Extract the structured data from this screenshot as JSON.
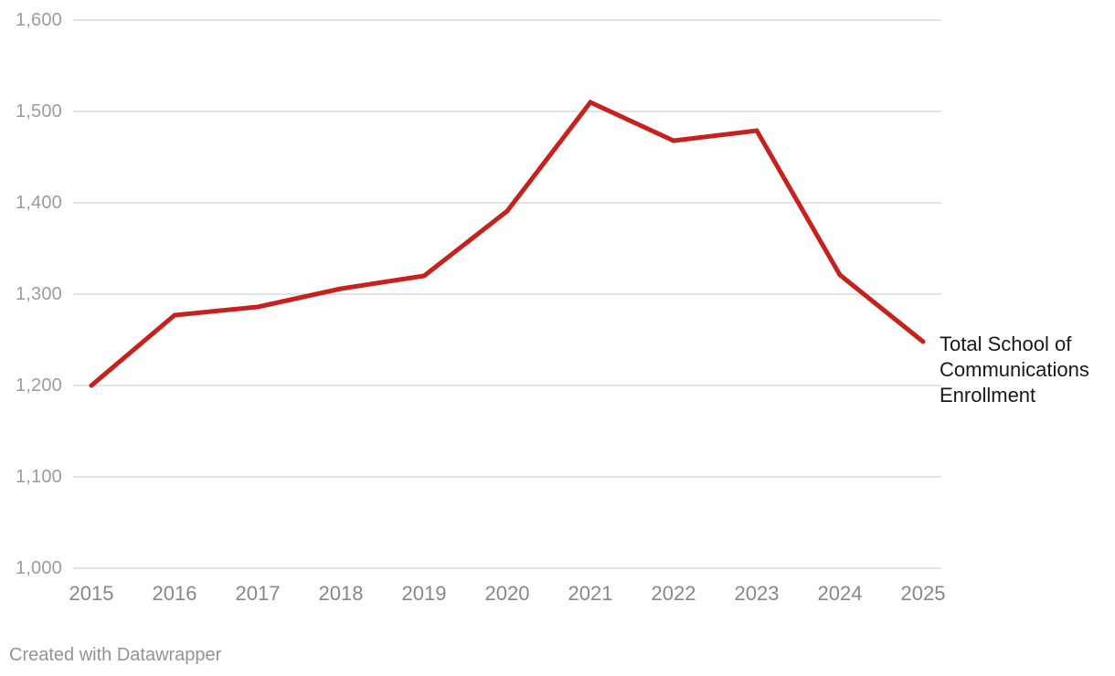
{
  "chart_data": {
    "type": "line",
    "x": [
      2015,
      2016,
      2017,
      2018,
      2019,
      2020,
      2021,
      2022,
      2023,
      2024,
      2025
    ],
    "series": [
      {
        "name": "Total School of Communications Enrollment",
        "values": [
          1200,
          1277,
          1286,
          1306,
          1320,
          1391,
          1510,
          1468,
          1479,
          1321,
          1248
        ]
      }
    ],
    "title": "",
    "xlabel": "",
    "ylabel": "",
    "ylim": [
      1000,
      1600
    ],
    "y_tick_values": [
      1600,
      1500,
      1400,
      1300,
      1200,
      1100,
      1000
    ],
    "y_tick_labels": [
      "1,600",
      "1,500",
      "1,400",
      "1,300",
      "1,200",
      "1,100",
      "1,000"
    ],
    "x_tick_labels": [
      "2015",
      "2016",
      "2017",
      "2018",
      "2019",
      "2020",
      "2021",
      "2022",
      "2023",
      "2024",
      "2025"
    ],
    "grid": "horizontal-only",
    "legend_position": "end-of-line-label",
    "line_color": "#c7201d",
    "gridline_color": "#e3e3e3"
  },
  "annotation": {
    "lines": [
      "Total School of",
      "Communications",
      "Enrollment"
    ]
  },
  "footer": {
    "text": "Created with Datawrapper"
  },
  "colors": {
    "background": "#ffffff",
    "line": "#c7201d",
    "gridline": "#e3e3e3",
    "y_tick_text": "#9b9b9b",
    "x_tick_text": "#878787",
    "annotation_text": "#181818",
    "attribution_text": "#949494"
  }
}
